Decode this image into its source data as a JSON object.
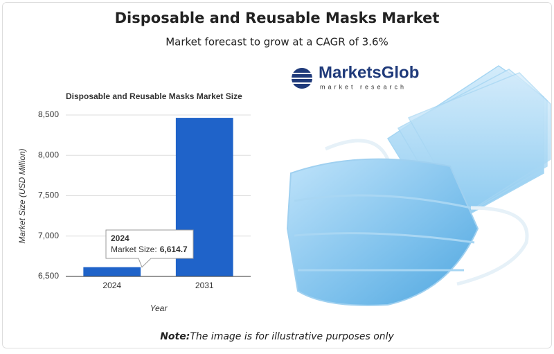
{
  "header": {
    "title": "Disposable and Reusable Masks Market",
    "subtitle": "Market forecast to grow at a CAGR of 3.6%"
  },
  "chart_data": {
    "type": "bar",
    "title": "Disposable and Reusable Masks Market Size",
    "x_label": "Year",
    "y_label": "Market Size (USD Million)",
    "categories": [
      "2024",
      "2031"
    ],
    "values": [
      6614.7,
      8465
    ],
    "value_labels": [
      "6,614.7",
      null
    ],
    "tooltip_label": "Market Size:",
    "color": "#1f63c9",
    "ylim": [
      6500,
      8500
    ],
    "yticks": [
      {
        "value": 6500,
        "label": "6,500"
      },
      {
        "value": 7000,
        "label": "7,000"
      },
      {
        "value": 7500,
        "label": "7,500"
      },
      {
        "value": 8000,
        "label": "8,000"
      },
      {
        "value": 8500,
        "label": "8,500"
      }
    ],
    "grid": true
  },
  "logo": {
    "name": "MarketsGlob",
    "tagline": "market research"
  },
  "note": {
    "label": "Note:",
    "text": "The image is for illustrative purposes only"
  }
}
